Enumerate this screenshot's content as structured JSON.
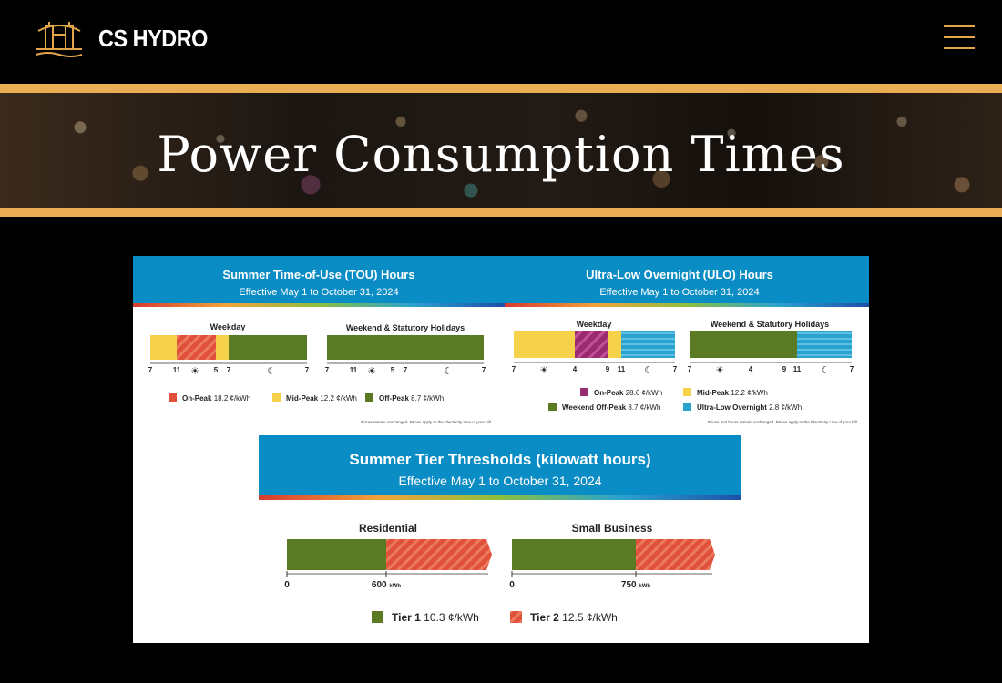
{
  "header": {
    "brand": "CS HYDRO",
    "logo_icon": "tower-bridge-logo-icon",
    "menu_icon": "hamburger-menu-icon",
    "accent_color": "#e9ad55"
  },
  "hero": {
    "title": "Power Consumption Times"
  },
  "infographic": {
    "tou": {
      "title": "Summer Time-of-Use (TOU) Hours",
      "subtitle": "Effective May 1 to October 31, 2024",
      "weekday_label": "Weekday",
      "weekend_label": "Weekend & Statutory Holidays",
      "weekday_ticks": [
        "7",
        "11",
        "5",
        "7",
        "7"
      ],
      "weekend_ticks": [
        "7",
        "11",
        "5",
        "7",
        "7"
      ],
      "legend": [
        {
          "name": "On-Peak",
          "price": "18.2 ¢/kWh",
          "color": "#e0503a"
        },
        {
          "name": "Mid-Peak",
          "price": "12.2 ¢/kWh",
          "color": "#f6d24b"
        },
        {
          "name": "Off-Peak",
          "price": "8.7 ¢/kWh",
          "color": "#5a7a23"
        }
      ],
      "note": "Prices remain unchanged. Prices apply to the Electricity Line of your bill."
    },
    "ulo": {
      "title": "Ultra-Low Overnight (ULO) Hours",
      "subtitle": "Effective May 1 to October 31, 2024",
      "weekday_label": "Weekday",
      "weekend_label": "Weekend & Statutory Holidays",
      "weekday_ticks": [
        "7",
        "4",
        "9",
        "11",
        "7"
      ],
      "weekend_ticks": [
        "7",
        "4",
        "9",
        "11",
        "7"
      ],
      "legend": [
        {
          "name": "On-Peak",
          "price": "28.6 ¢/kWh",
          "color": "#9b2a6e"
        },
        {
          "name": "Mid-Peak",
          "price": "12.2 ¢/kWh",
          "color": "#f6d24b"
        },
        {
          "name": "Weekend Off-Peak",
          "price": "8.7 ¢/kWh",
          "color": "#5a7a23"
        },
        {
          "name": "Ultra-Low Overnight",
          "price": "2.8 ¢/kWh",
          "color": "#2aa3cf"
        }
      ],
      "note": "Prices and hours remain unchanged. Prices apply to the Electricity Line of your bill."
    },
    "tier": {
      "title": "Summer Tier Thresholds (kilowatt hours)",
      "subtitle": "Effective May 1 to October 31, 2024",
      "residential_label": "Residential",
      "residential_zero": "0",
      "residential_threshold": "600",
      "small_business_label": "Small Business",
      "small_business_zero": "0",
      "small_business_threshold": "750",
      "unit": "kWh",
      "legend": [
        {
          "name": "Tier 1",
          "price": "10.3 ¢/kWh",
          "color": "#5a7a23"
        },
        {
          "name": "Tier 2",
          "price": "12.5 ¢/kWh",
          "color": "#e0503a"
        }
      ]
    },
    "colors": {
      "banner_blue": "#0a8cc4"
    }
  }
}
